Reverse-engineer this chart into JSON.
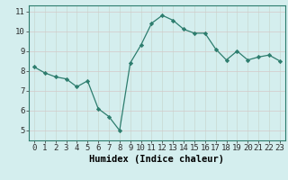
{
  "x": [
    0,
    1,
    2,
    3,
    4,
    5,
    6,
    7,
    8,
    9,
    10,
    11,
    12,
    13,
    14,
    15,
    16,
    17,
    18,
    19,
    20,
    21,
    22,
    23
  ],
  "y": [
    8.2,
    7.9,
    7.7,
    7.6,
    7.2,
    7.5,
    6.1,
    5.7,
    5.0,
    8.4,
    9.3,
    10.4,
    10.8,
    10.55,
    10.1,
    9.9,
    9.9,
    9.1,
    8.55,
    9.0,
    8.55,
    8.7,
    8.8,
    8.5
  ],
  "line_color": "#2d7d6e",
  "marker": "D",
  "marker_size": 2.2,
  "bg_color": "#d4eeee",
  "grid_color": "#c0d8d8",
  "xlabel": "Humidex (Indice chaleur)",
  "xlim": [
    -0.5,
    23.5
  ],
  "ylim": [
    4.5,
    11.3
  ],
  "xticks": [
    0,
    1,
    2,
    3,
    4,
    5,
    6,
    7,
    8,
    9,
    10,
    11,
    12,
    13,
    14,
    15,
    16,
    17,
    18,
    19,
    20,
    21,
    22,
    23
  ],
  "yticks": [
    5,
    6,
    7,
    8,
    9,
    10,
    11
  ],
  "label_fontsize": 7.5,
  "tick_fontsize": 6.5
}
